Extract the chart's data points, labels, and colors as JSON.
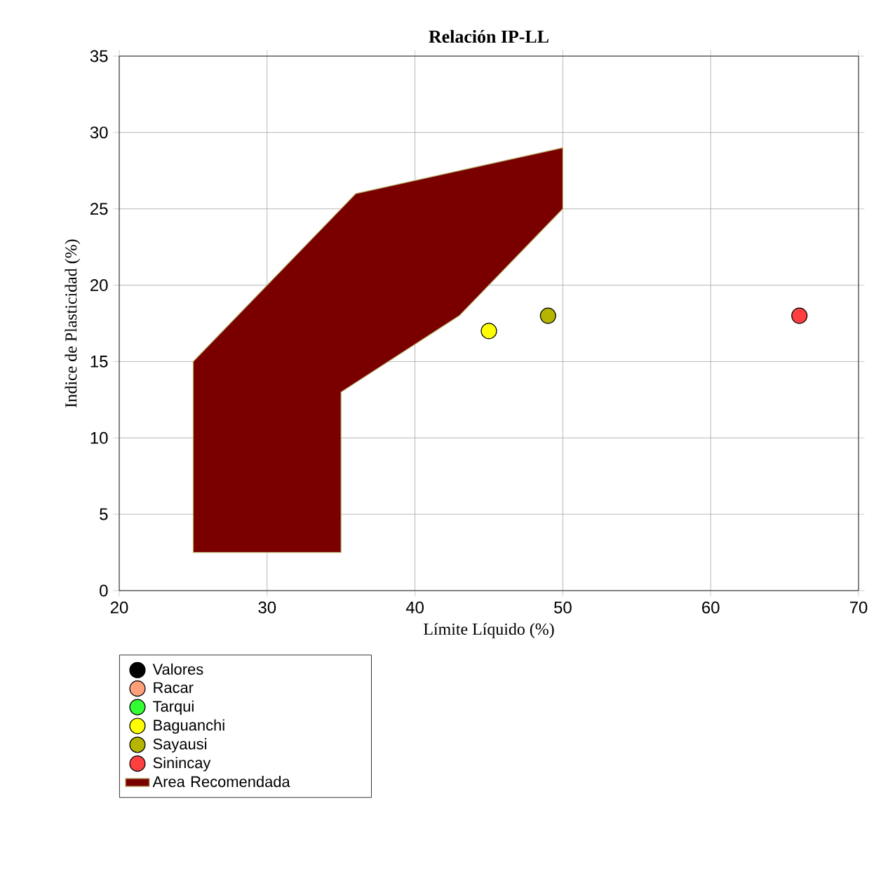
{
  "chart_data": {
    "type": "scatter",
    "title": "Relación IP-LL",
    "xlabel": "Límite Líquido (%)",
    "ylabel": "Indice de Plasticidad (%)",
    "xlim": [
      20,
      70
    ],
    "ylim": [
      0,
      35
    ],
    "xticks": [
      20,
      30,
      40,
      50,
      60,
      70
    ],
    "yticks": [
      0,
      5,
      10,
      15,
      20,
      25,
      30,
      35
    ],
    "grid": true,
    "legend": "bottom left",
    "series": [
      {
        "name": "Valores",
        "color": "#000000",
        "marker": "circle",
        "x": [
          null
        ],
        "values": [
          null
        ]
      },
      {
        "name": "Racar",
        "color": "#ffa07a",
        "marker": "circle",
        "x": [
          null
        ],
        "values": [
          null
        ]
      },
      {
        "name": "Tarqui",
        "color": "#33ff33",
        "marker": "circle",
        "x": [
          null
        ],
        "values": [
          null
        ]
      },
      {
        "name": "Baguanchi",
        "color": "#ffff00",
        "marker": "circle",
        "x": [
          45
        ],
        "values": [
          17
        ]
      },
      {
        "name": "Sayausi",
        "color": "#b5b500",
        "marker": "circle",
        "x": [
          49
        ],
        "values": [
          18
        ]
      },
      {
        "name": "Sinincay",
        "color": "#ff4040",
        "marker": "circle",
        "x": [
          66
        ],
        "values": [
          18
        ]
      },
      {
        "name": "Area Recomendada",
        "type": "area",
        "marker": "none",
        "color": "#7a0000",
        "x": [
          25,
          25,
          36,
          50,
          50,
          43,
          35,
          35
        ],
        "values": [
          2.5,
          15,
          26,
          29,
          25,
          18,
          13,
          2.5
        ]
      }
    ]
  }
}
